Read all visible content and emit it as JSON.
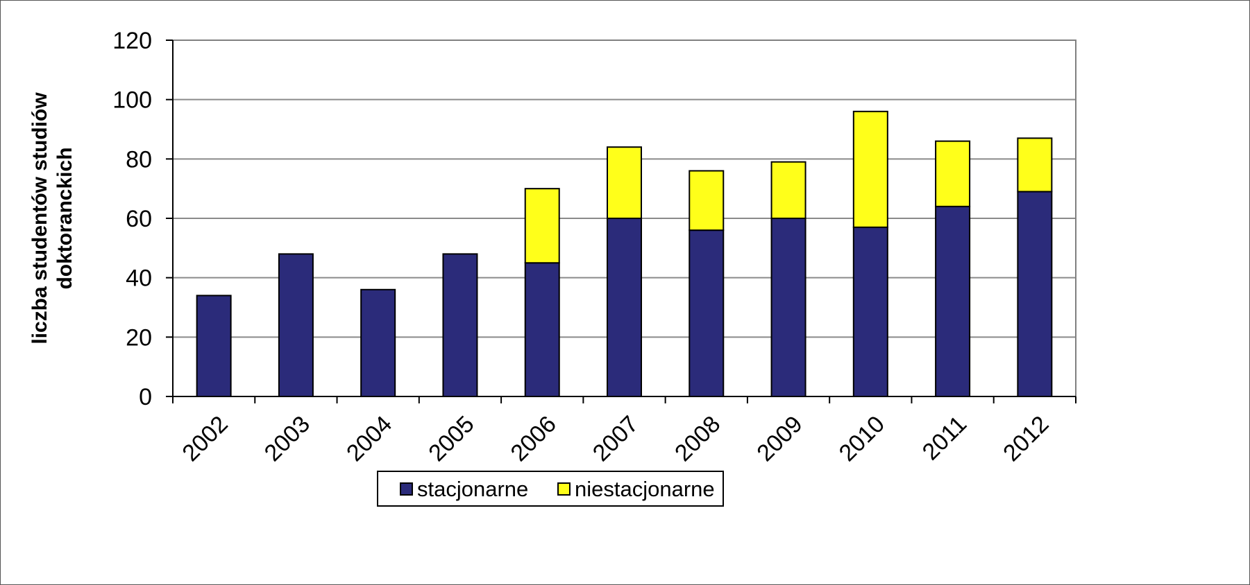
{
  "chart_data": {
    "type": "bar",
    "stacked": true,
    "categories": [
      "2002",
      "2003",
      "2004",
      "2005",
      "2006",
      "2007",
      "2008",
      "2009",
      "2010",
      "2011",
      "2012"
    ],
    "series": [
      {
        "name": "stacjonarne",
        "values": [
          34,
          48,
          36,
          48,
          45,
          60,
          56,
          60,
          57,
          64,
          69
        ],
        "color": "#2b2b7a"
      },
      {
        "name": "niestacjonarne",
        "values": [
          0,
          0,
          0,
          0,
          25,
          24,
          20,
          19,
          39,
          22,
          18
        ],
        "color": "#ffff1a"
      }
    ],
    "title": "",
    "xlabel": "",
    "ylabel_lines": [
      "liczba studentów studiów",
      "doktoranckich"
    ],
    "ylim": [
      0,
      120
    ],
    "yticks": [
      0,
      20,
      40,
      60,
      80,
      100,
      120
    ],
    "grid": true,
    "legend_position": "bottom"
  }
}
